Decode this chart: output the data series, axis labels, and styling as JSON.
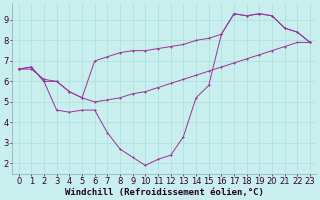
{
  "bg_color": "#c8eeee",
  "grid_color": "#aadddd",
  "line_color": "#993399",
  "x_data": [
    0,
    1,
    2,
    3,
    4,
    5,
    6,
    7,
    8,
    9,
    10,
    11,
    12,
    13,
    14,
    15,
    16,
    17,
    18,
    19,
    20,
    21,
    22,
    23
  ],
  "line1": [
    6.6,
    6.7,
    6.0,
    4.6,
    4.5,
    4.6,
    4.6,
    3.5,
    2.7,
    2.3,
    1.9,
    2.2,
    2.4,
    3.3,
    5.2,
    5.8,
    8.3,
    9.3,
    9.2,
    9.3,
    9.2,
    8.6,
    8.4,
    7.9
  ],
  "line2": [
    6.6,
    6.6,
    6.1,
    6.0,
    5.5,
    5.2,
    5.0,
    5.1,
    5.2,
    5.4,
    5.5,
    5.7,
    5.9,
    6.1,
    6.3,
    6.5,
    6.7,
    6.9,
    7.1,
    7.3,
    7.5,
    7.7,
    7.9,
    7.9
  ],
  "line3": [
    6.6,
    6.7,
    6.0,
    6.0,
    5.5,
    5.2,
    7.0,
    7.2,
    7.4,
    7.5,
    7.5,
    7.6,
    7.7,
    7.8,
    8.0,
    8.1,
    8.3,
    9.3,
    9.2,
    9.3,
    9.2,
    8.6,
    8.4,
    7.9
  ],
  "xlabel": "Windchill (Refroidissement éolien,°C)",
  "xlim": [
    -0.5,
    23.5
  ],
  "ylim": [
    1.5,
    9.8
  ],
  "yticks": [
    2,
    3,
    4,
    5,
    6,
    7,
    8,
    9
  ],
  "xticks": [
    0,
    1,
    2,
    3,
    4,
    5,
    6,
    7,
    8,
    9,
    10,
    11,
    12,
    13,
    14,
    15,
    16,
    17,
    18,
    19,
    20,
    21,
    22,
    23
  ],
  "tick_fontsize": 6,
  "xlabel_fontsize": 6.5
}
